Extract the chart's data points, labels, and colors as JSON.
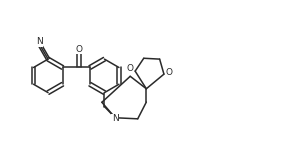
{
  "bg_color": "#ffffff",
  "line_color": "#2a2a2a",
  "line_width": 1.1,
  "font_size": 6.5,
  "figw": 2.98,
  "figh": 1.41,
  "dpi": 100,
  "xlim": [
    0,
    13.5
  ],
  "ylim": [
    0,
    6.5
  ]
}
